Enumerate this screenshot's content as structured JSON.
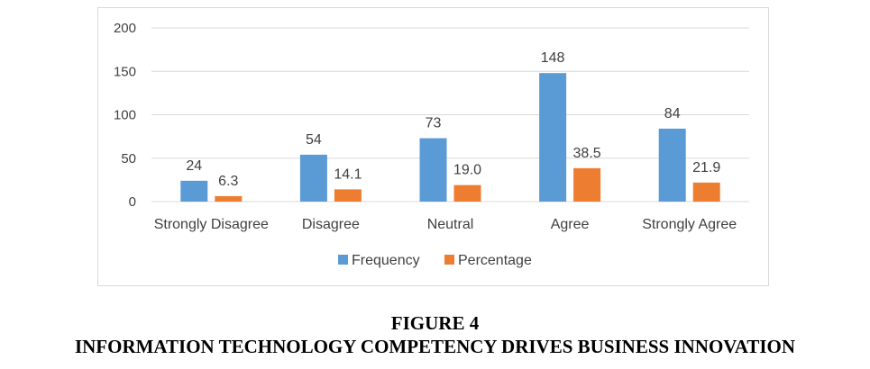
{
  "chart_data": {
    "type": "bar",
    "categories": [
      "Strongly Disagree",
      "Disagree",
      "Neutral",
      "Agree",
      "Strongly Agree"
    ],
    "series": [
      {
        "name": "Frequency",
        "values": [
          24,
          54,
          73,
          148,
          84
        ],
        "labels": [
          "24",
          "54",
          "73",
          "148",
          "84"
        ],
        "color": "#5b9bd5"
      },
      {
        "name": "Percentage",
        "values": [
          6.3,
          14.1,
          19.0,
          38.5,
          21.9
        ],
        "labels": [
          "6.3",
          "14.1",
          "19.0",
          "38.5",
          "21.9"
        ],
        "color": "#ed7d31"
      }
    ],
    "yticks": [
      "0",
      "50",
      "100",
      "150",
      "200"
    ],
    "ylim": [
      0,
      200
    ],
    "grid": true,
    "legend": "bottom",
    "xlabel": "",
    "ylabel": ""
  },
  "caption": {
    "figure_number": "FIGURE 4",
    "title": "INFORMATION TECHNOLOGY COMPETENCY DRIVES BUSINESS INNOVATION"
  },
  "colors": {
    "gridline": "#d9d9d9",
    "text": "#404040"
  }
}
